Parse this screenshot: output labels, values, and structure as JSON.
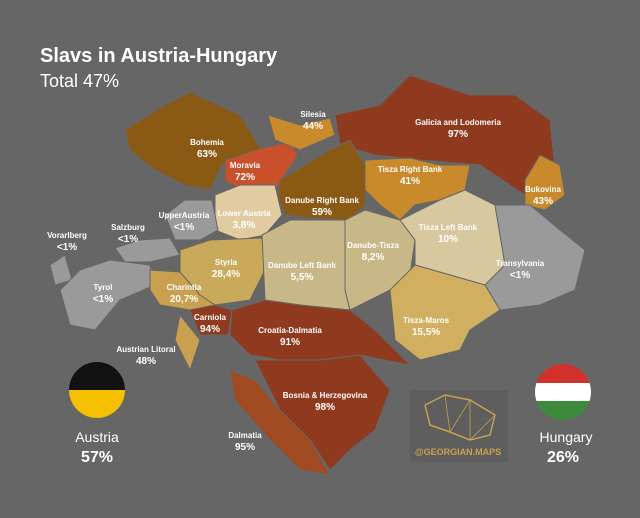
{
  "header": {
    "title": "Slavs in Austria-Hungary",
    "subtitle": "Total 47%"
  },
  "regions": [
    {
      "name": "Bohemia",
      "value": "63%"
    },
    {
      "name": "Moravia",
      "value": "72%"
    },
    {
      "name": "Silesia",
      "value": "44%"
    },
    {
      "name": "Galicia and Lodomeria",
      "value": "97%"
    },
    {
      "name": "Bukovina",
      "value": "43%"
    },
    {
      "name": "Tisza Right Bank",
      "value": "41%"
    },
    {
      "name": "Danube Right Bank",
      "value": "59%"
    },
    {
      "name": "Lower Austria",
      "value": "3,8%"
    },
    {
      "name": "UpperAustria",
      "value": "<1%"
    },
    {
      "name": "Salzburg",
      "value": "<1%"
    },
    {
      "name": "Vorarlberg",
      "value": "<1%"
    },
    {
      "name": "Tyrol",
      "value": "<1%"
    },
    {
      "name": "Styria",
      "value": "28,4%"
    },
    {
      "name": "Charintia",
      "value": "20,7%"
    },
    {
      "name": "Danube Left Bank",
      "value": "5,5%"
    },
    {
      "name": "Danube-Tisza",
      "value": "8,2%"
    },
    {
      "name": "Tisza Left Bank",
      "value": "10%"
    },
    {
      "name": "Transylvania",
      "value": "<1%"
    },
    {
      "name": "Tisza-Maros",
      "value": "15,5%"
    },
    {
      "name": "Carniola",
      "value": "94%"
    },
    {
      "name": "Croatia-Dalmatia",
      "value": "91%"
    },
    {
      "name": "Austrian Litoral",
      "value": "48%"
    },
    {
      "name": "Bosnia & Herzegovina",
      "value": "98%"
    },
    {
      "name": "Dalmatia",
      "value": "95%"
    }
  ],
  "legend": {
    "austria": {
      "label": "Austria",
      "value": "57%"
    },
    "hungary": {
      "label": "Hungary",
      "value": "26%"
    }
  },
  "watermark": "@GEORGIAN.MAPS"
}
